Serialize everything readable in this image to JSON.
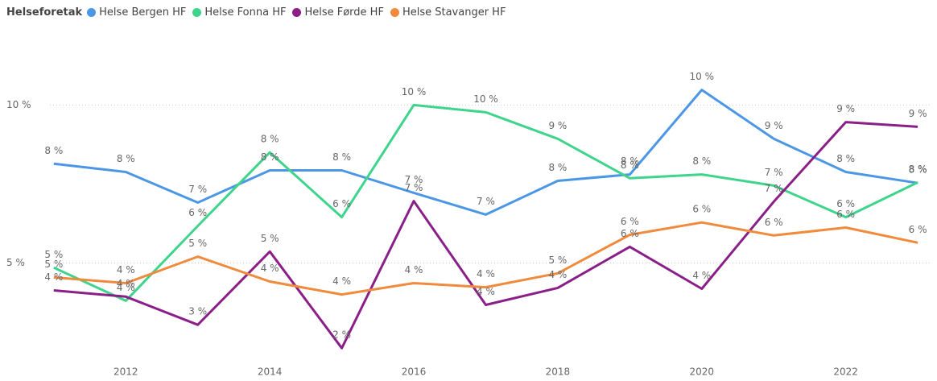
{
  "chart_data": {
    "type": "line",
    "legend_title": "Helseforetak",
    "legend_position": "top-left",
    "x": [
      2011,
      2012,
      2013,
      2014,
      2015,
      2016,
      2017,
      2018,
      2019,
      2020,
      2021,
      2022,
      2023
    ],
    "xlim": [
      2010.7,
      2023.2
    ],
    "xticks": [
      2012,
      2014,
      2016,
      2018,
      2020,
      2022
    ],
    "ylim": [
      2,
      12
    ],
    "yticks": [
      {
        "value": 5,
        "label": "5 %"
      },
      {
        "value": 10,
        "label": "10 %"
      }
    ],
    "grid": true,
    "series": [
      {
        "name": "Helse Bergen HF",
        "color": "#4b97e6",
        "values": [
          8.14,
          7.88,
          6.91,
          7.93,
          7.93,
          7.22,
          6.53,
          7.6,
          7.8,
          10.48,
          8.93,
          7.88,
          7.53
        ],
        "value_labels": [
          "8 %",
          "8 %",
          "7 %",
          "8 %",
          "8 %",
          "7 %",
          "7 %",
          "8 %",
          "8 %",
          "10 %",
          "9 %",
          "8 %",
          "8 %"
        ]
      },
      {
        "name": "Helse Fonna HF",
        "color": "#3fd48c",
        "values": [
          4.85,
          3.8,
          6.17,
          8.5,
          6.45,
          10,
          9.77,
          8.93,
          7.68,
          7.8,
          7.45,
          6.45,
          7.55
        ],
        "value_labels": [
          "5 %",
          "4 %",
          "6 %",
          "8 %",
          "6 %",
          "10 %",
          "10 %",
          "9 %",
          "8 %",
          "8 %",
          "7 %",
          "6 %",
          "8 %"
        ]
      },
      {
        "name": "Helse Førde HF",
        "color": "#8a1f87",
        "values": [
          4.13,
          3.93,
          3.04,
          5.36,
          2.3,
          6.96,
          3.67,
          4.21,
          5.51,
          4.18,
          6.94,
          9.46,
          9.31
        ],
        "value_labels": [
          "4 %",
          "4 %",
          "3 %",
          "5 %",
          "2 %",
          "7 %",
          "4 %",
          "4 %",
          "6 %",
          "4 %",
          "7 %",
          "9 %",
          "9 %"
        ]
      },
      {
        "name": "Helse Stavanger HF",
        "color": "#f08a3c",
        "values": [
          4.54,
          4.36,
          5.2,
          4.41,
          4.0,
          4.36,
          4.23,
          4.67,
          5.89,
          6.28,
          5.87,
          6.12,
          5.64
        ],
        "value_labels": [
          "5 %",
          "4 %",
          "5 %",
          "4 %",
          "4 %",
          "4 %",
          "4 %",
          "5 %",
          "6 %",
          "6 %",
          "6 %",
          "6 %",
          "6 %"
        ]
      }
    ]
  }
}
